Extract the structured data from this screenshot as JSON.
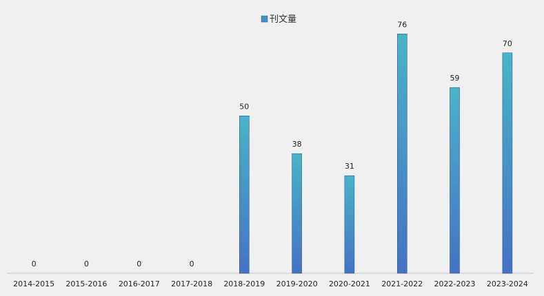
{
  "chart_data": {
    "type": "bar",
    "categories": [
      "2014-2015",
      "2015-2016",
      "2016-2017",
      "2017-2018",
      "2018-2019",
      "2019-2020",
      "2020-2021",
      "2021-2022",
      "2022-2023",
      "2023-2024"
    ],
    "series": [
      {
        "name": "刊文量",
        "values": [
          0,
          0,
          0,
          0,
          50,
          38,
          31,
          76,
          59,
          70
        ]
      }
    ],
    "title": "",
    "xlabel": "",
    "ylabel": "",
    "ylim": [
      0,
      80
    ],
    "grid": false,
    "legend_position": "top-center",
    "data_labels": true,
    "colors": {
      "bar_top": "#4ab3c9",
      "bar_bottom": "#4472c4",
      "bar_stroke": "#2f5f86",
      "axis": "#c8c8c8",
      "legend_swatch": "#3c94c4"
    }
  }
}
